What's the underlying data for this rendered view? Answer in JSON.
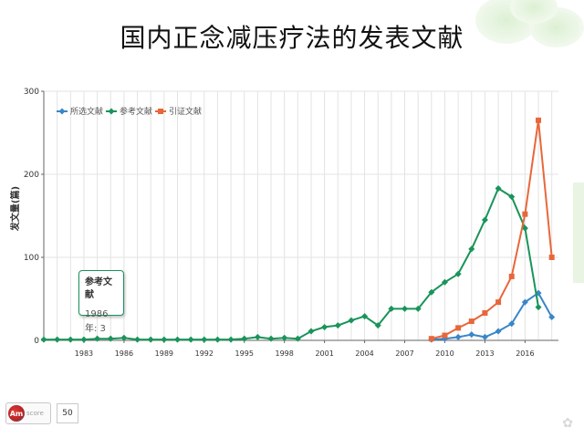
{
  "page": {
    "title": "国内正念减压疗法的发表文献"
  },
  "tooltip": {
    "series": "参考文献",
    "value": "1986年: 3"
  },
  "badge": {
    "logo": "Am",
    "word": "score",
    "score": "50"
  },
  "colors": {
    "selected": "#3a86c8",
    "reference": "#19945a",
    "citing": "#e8673a",
    "grid": "#e3e3e3",
    "axis": "#666666"
  },
  "chart_data": {
    "type": "line",
    "title": "",
    "xlabel": "",
    "ylabel": "发文量(篇)",
    "xlim": [
      1980,
      2018.5
    ],
    "ylim": [
      0,
      300
    ],
    "yticks": [
      0,
      100,
      200,
      300
    ],
    "xticks": [
      1983,
      1986,
      1989,
      1992,
      1995,
      1998,
      2001,
      2004,
      2007,
      2010,
      2013,
      2016
    ],
    "grid": true,
    "legend": "top-left",
    "series": [
      {
        "name": "所选文献",
        "color": "#3a86c8",
        "marker": "diamond",
        "x": [
          2009,
          2010,
          2011,
          2012,
          2013,
          2014,
          2015,
          2016,
          2017,
          2018
        ],
        "y": [
          1,
          2,
          4,
          7,
          4,
          11,
          20,
          46,
          57,
          28
        ]
      },
      {
        "name": "参考文献",
        "color": "#19945a",
        "marker": "diamond",
        "x": [
          1980,
          1981,
          1982,
          1983,
          1984,
          1985,
          1986,
          1987,
          1988,
          1989,
          1990,
          1991,
          1992,
          1993,
          1994,
          1995,
          1996,
          1997,
          1998,
          1999,
          2000,
          2001,
          2002,
          2003,
          2004,
          2005,
          2006,
          2007,
          2008,
          2009,
          2010,
          2011,
          2012,
          2013,
          2014,
          2015,
          2016,
          2017
        ],
        "y": [
          1,
          1,
          1,
          1,
          2,
          2,
          3,
          1,
          1,
          1,
          1,
          1,
          1,
          1,
          1,
          2,
          4,
          2,
          3,
          2,
          11,
          16,
          18,
          24,
          29,
          18,
          38,
          38,
          38,
          58,
          70,
          80,
          110,
          145,
          183,
          173,
          135,
          40
        ]
      },
      {
        "name": "引证文献",
        "color": "#e8673a",
        "marker": "square",
        "x": [
          2009,
          2010,
          2011,
          2012,
          2013,
          2014,
          2015,
          2016,
          2017,
          2018
        ],
        "y": [
          2,
          6,
          15,
          23,
          33,
          46,
          77,
          152,
          265,
          100
        ]
      }
    ]
  }
}
